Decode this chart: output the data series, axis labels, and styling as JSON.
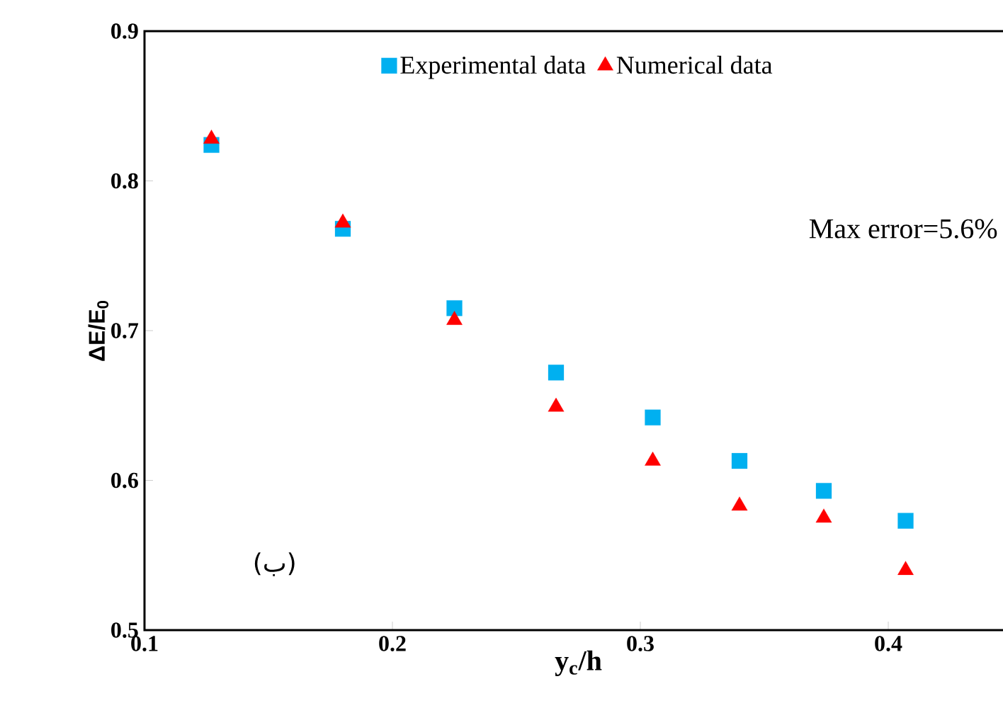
{
  "chart_data": {
    "type": "scatter",
    "xlabel": "y$_{c}$/h",
    "ylabel": "ΔE/E$_{0}$",
    "annotations": [
      "Max error=5.6%",
      "(ب)"
    ],
    "xlim": [
      0.1,
      0.45
    ],
    "xticks": [
      0.1,
      0.2,
      0.3,
      0.4
    ],
    "ylim": [
      0.5,
      0.9
    ],
    "yticks": [
      0.5,
      0.6,
      0.7,
      0.8,
      0.9
    ],
    "grid": false,
    "legend": "top",
    "series": [
      {
        "name": "Experimental data",
        "color": "#00b0f0",
        "marker": "square",
        "x": [
          0.127,
          0.18,
          0.225,
          0.266,
          0.305,
          0.34,
          0.374,
          0.407
        ],
        "values": [
          0.824,
          0.768,
          0.715,
          0.672,
          0.642,
          0.613,
          0.593,
          0.573
        ]
      },
      {
        "name": "Numerical data",
        "color": "#ff0000",
        "marker": "triangle",
        "x": [
          0.127,
          0.18,
          0.225,
          0.266,
          0.305,
          0.34,
          0.374,
          0.407
        ],
        "values": [
          0.828,
          0.772,
          0.707,
          0.649,
          0.613,
          0.583,
          0.575,
          0.54
        ]
      }
    ]
  }
}
